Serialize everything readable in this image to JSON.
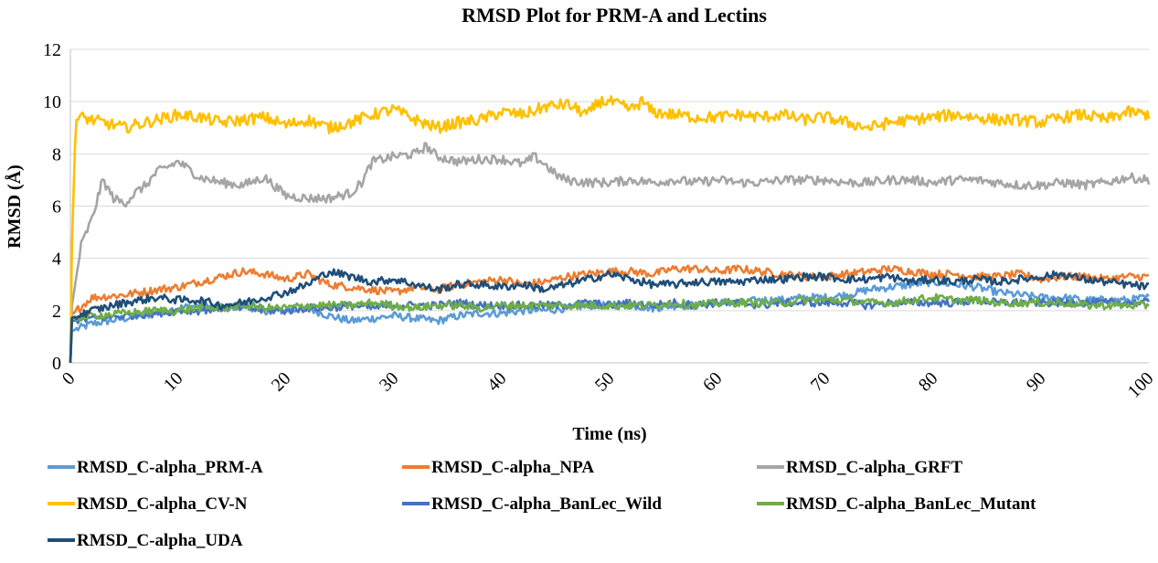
{
  "chart_data": {
    "type": "line",
    "title": "RMSD Plot for PRM-A and Lectins",
    "xlabel": "Time (ns)",
    "ylabel": "RMSD (Å)",
    "xlim": [
      0,
      100
    ],
    "ylim": [
      0,
      12
    ],
    "xticks": [
      "0",
      "10",
      "20",
      "30",
      "40",
      "50",
      "60",
      "70",
      "80",
      "90",
      "100"
    ],
    "yticks": [
      "0",
      "2",
      "4",
      "6",
      "8",
      "10",
      "12"
    ],
    "grid": "horizontal",
    "legend_position": "bottom",
    "series": [
      {
        "name": "RMSD_C-alpha_PRM-A",
        "color": "#5B9BD5",
        "x": [
          0,
          2,
          5,
          8,
          10,
          12,
          14,
          16,
          18,
          20,
          22,
          24,
          26,
          28,
          30,
          32,
          34,
          36,
          38,
          40,
          42,
          44,
          46,
          48,
          50,
          52,
          54,
          56,
          58,
          60,
          62,
          64,
          66,
          68,
          70,
          72,
          74,
          76,
          78,
          80,
          82,
          84,
          86,
          88,
          90,
          92,
          94,
          96,
          98,
          100
        ],
        "y": [
          1.2,
          1.5,
          1.7,
          1.9,
          2.1,
          2.2,
          2.1,
          2.2,
          2.0,
          2.0,
          2.1,
          1.8,
          1.6,
          1.7,
          1.8,
          1.7,
          1.6,
          1.8,
          1.9,
          1.9,
          2.0,
          2.0,
          2.1,
          2.2,
          2.2,
          2.2,
          2.1,
          2.2,
          2.2,
          2.3,
          2.3,
          2.4,
          2.4,
          2.5,
          2.5,
          2.6,
          2.8,
          2.9,
          3.0,
          3.1,
          3.0,
          2.9,
          2.7,
          2.6,
          2.5,
          2.5,
          2.4,
          2.4,
          2.4,
          2.5
        ]
      },
      {
        "name": "RMSD_C-alpha_NPA",
        "color": "#ED7D31",
        "x": [
          0,
          2,
          5,
          8,
          10,
          12,
          14,
          16,
          18,
          20,
          22,
          24,
          26,
          28,
          30,
          32,
          34,
          36,
          38,
          40,
          42,
          44,
          46,
          48,
          50,
          52,
          54,
          56,
          58,
          60,
          62,
          64,
          66,
          68,
          70,
          72,
          74,
          76,
          78,
          80,
          82,
          84,
          86,
          88,
          90,
          92,
          94,
          96,
          98,
          100
        ],
        "y": [
          1.8,
          2.5,
          2.6,
          2.8,
          2.9,
          3.1,
          3.3,
          3.5,
          3.4,
          3.2,
          3.4,
          3.0,
          2.9,
          2.8,
          2.7,
          2.9,
          2.8,
          3.0,
          3.1,
          3.2,
          3.0,
          3.1,
          3.3,
          3.4,
          3.5,
          3.5,
          3.4,
          3.6,
          3.6,
          3.5,
          3.6,
          3.5,
          3.4,
          3.3,
          3.3,
          3.4,
          3.5,
          3.6,
          3.5,
          3.4,
          3.4,
          3.3,
          3.3,
          3.4,
          3.2,
          3.3,
          3.3,
          3.2,
          3.3,
          3.3
        ]
      },
      {
        "name": "RMSD_C-alpha_GRFT",
        "color": "#A5A5A5",
        "x": [
          0,
          1,
          2,
          3,
          4,
          5,
          6,
          7,
          8,
          9,
          10,
          12,
          14,
          16,
          18,
          20,
          22,
          24,
          26,
          27,
          28,
          30,
          32,
          33,
          34,
          36,
          38,
          40,
          42,
          43,
          44,
          45,
          46,
          48,
          50,
          52,
          54,
          56,
          58,
          60,
          62,
          64,
          66,
          68,
          70,
          72,
          74,
          76,
          78,
          80,
          82,
          84,
          86,
          88,
          90,
          92,
          94,
          96,
          98,
          100
        ],
        "y": [
          1.8,
          4.5,
          5.5,
          7.0,
          6.3,
          6.1,
          6.5,
          6.8,
          7.3,
          7.5,
          7.7,
          7.1,
          6.9,
          6.8,
          7.1,
          6.4,
          6.3,
          6.3,
          6.5,
          6.9,
          7.7,
          7.9,
          8.0,
          8.3,
          7.9,
          7.7,
          7.8,
          7.8,
          7.6,
          7.9,
          7.6,
          7.2,
          7.0,
          6.9,
          6.9,
          7.0,
          6.9,
          7.0,
          6.9,
          7.0,
          6.9,
          6.9,
          7.0,
          7.0,
          7.0,
          6.9,
          6.9,
          7.0,
          7.0,
          6.9,
          7.0,
          7.0,
          6.9,
          6.8,
          6.8,
          6.9,
          6.8,
          6.9,
          7.1,
          7.0
        ]
      },
      {
        "name": "RMSD_C-alpha_CV-N",
        "color": "#FFC000",
        "x": [
          0,
          0.5,
          1,
          3,
          5,
          8,
          10,
          12,
          14,
          16,
          18,
          20,
          22,
          24,
          26,
          28,
          30,
          32,
          34,
          36,
          38,
          40,
          42,
          44,
          46,
          48,
          49,
          50,
          52,
          53,
          54,
          56,
          58,
          60,
          62,
          64,
          66,
          68,
          70,
          72,
          74,
          76,
          78,
          80,
          82,
          84,
          86,
          88,
          90,
          92,
          94,
          96,
          98,
          100
        ],
        "y": [
          2.5,
          9.3,
          9.4,
          9.2,
          9.0,
          9.3,
          9.5,
          9.4,
          9.2,
          9.3,
          9.4,
          9.1,
          9.3,
          9.0,
          9.2,
          9.5,
          9.7,
          9.3,
          9.0,
          9.2,
          9.3,
          9.6,
          9.5,
          9.8,
          9.9,
          9.5,
          10.0,
          10.0,
          9.7,
          10.0,
          9.6,
          9.5,
          9.4,
          9.4,
          9.5,
          9.4,
          9.5,
          9.3,
          9.4,
          9.2,
          9.0,
          9.2,
          9.3,
          9.4,
          9.5,
          9.4,
          9.3,
          9.3,
          9.2,
          9.4,
          9.5,
          9.3,
          9.6,
          9.5
        ]
      },
      {
        "name": "RMSD_C-alpha_BanLec_Wild",
        "color": "#4472C4",
        "x": [
          0,
          2,
          5,
          8,
          10,
          12,
          14,
          16,
          18,
          20,
          22,
          24,
          26,
          28,
          30,
          32,
          34,
          36,
          38,
          40,
          42,
          44,
          46,
          48,
          50,
          52,
          54,
          56,
          58,
          60,
          62,
          64,
          66,
          68,
          70,
          72,
          74,
          76,
          78,
          80,
          82,
          84,
          86,
          88,
          90,
          92,
          94,
          96,
          98,
          100
        ],
        "y": [
          1.6,
          1.7,
          1.8,
          1.9,
          2.0,
          2.0,
          2.1,
          2.1,
          2.0,
          2.0,
          2.1,
          2.1,
          2.2,
          2.1,
          2.2,
          2.2,
          2.2,
          2.3,
          2.2,
          2.2,
          2.2,
          2.2,
          2.2,
          2.3,
          2.2,
          2.3,
          2.2,
          2.3,
          2.2,
          2.3,
          2.3,
          2.2,
          2.3,
          2.3,
          2.3,
          2.3,
          2.2,
          2.3,
          2.3,
          2.3,
          2.3,
          2.4,
          2.3,
          2.3,
          2.3,
          2.3,
          2.3,
          2.3,
          2.3,
          2.3
        ]
      },
      {
        "name": "RMSD_C-alpha_BanLec_Mutant",
        "color": "#70AD47",
        "x": [
          0,
          2,
          5,
          8,
          10,
          12,
          14,
          16,
          18,
          20,
          22,
          24,
          26,
          28,
          30,
          32,
          34,
          36,
          38,
          40,
          42,
          44,
          46,
          48,
          50,
          52,
          54,
          56,
          58,
          60,
          62,
          64,
          66,
          68,
          70,
          72,
          74,
          76,
          78,
          80,
          82,
          84,
          86,
          88,
          90,
          92,
          94,
          96,
          98,
          100
        ],
        "y": [
          1.7,
          1.8,
          1.9,
          2.0,
          2.0,
          2.1,
          2.1,
          2.2,
          2.1,
          2.1,
          2.2,
          2.2,
          2.2,
          2.3,
          2.2,
          2.1,
          2.2,
          2.2,
          2.1,
          2.2,
          2.2,
          2.2,
          2.2,
          2.2,
          2.2,
          2.2,
          2.2,
          2.3,
          2.2,
          2.3,
          2.3,
          2.3,
          2.3,
          2.4,
          2.4,
          2.4,
          2.3,
          2.3,
          2.4,
          2.5,
          2.4,
          2.4,
          2.3,
          2.3,
          2.3,
          2.3,
          2.2,
          2.2,
          2.2,
          2.2
        ]
      },
      {
        "name": "RMSD_C-alpha_UDA",
        "color": "#1F4E79",
        "x": [
          0,
          2,
          5,
          8,
          10,
          12,
          14,
          16,
          18,
          20,
          22,
          24,
          26,
          28,
          30,
          32,
          34,
          36,
          38,
          40,
          42,
          44,
          46,
          48,
          50,
          52,
          54,
          56,
          58,
          60,
          62,
          64,
          66,
          68,
          70,
          72,
          74,
          76,
          78,
          80,
          82,
          84,
          86,
          88,
          90,
          92,
          94,
          96,
          98,
          100
        ],
        "y": [
          1.7,
          2.0,
          2.3,
          2.5,
          2.4,
          2.4,
          2.2,
          2.3,
          2.5,
          2.7,
          3.0,
          3.5,
          3.3,
          3.1,
          3.2,
          3.0,
          2.8,
          3.0,
          3.0,
          2.9,
          3.0,
          2.8,
          3.0,
          3.2,
          3.4,
          3.2,
          3.0,
          3.0,
          3.1,
          3.1,
          3.1,
          3.2,
          3.2,
          3.3,
          3.3,
          3.2,
          3.2,
          3.3,
          3.1,
          3.2,
          3.1,
          3.2,
          3.1,
          3.2,
          3.3,
          3.4,
          3.2,
          3.1,
          3.0,
          2.9
        ]
      }
    ]
  }
}
